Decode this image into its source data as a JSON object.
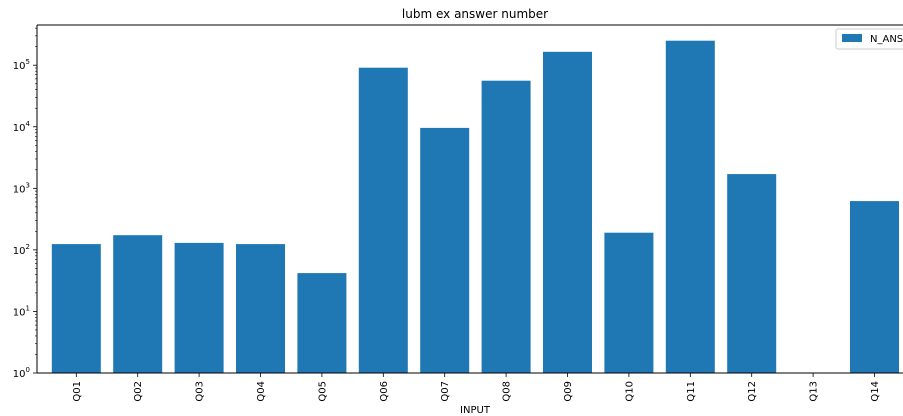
{
  "chart_data": {
    "type": "bar",
    "title": "lubm ex answer number",
    "xlabel": "INPUT",
    "ylabel": "",
    "yscale": "log",
    "ylim": [
      1,
      450000
    ],
    "grid": false,
    "legend_placement": "top-right",
    "bar_color": "#1f77b4",
    "categories": [
      "Q01",
      "Q02",
      "Q03",
      "Q04",
      "Q05",
      "Q06",
      "Q07",
      "Q08",
      "Q09",
      "Q10",
      "Q11",
      "Q12",
      "Q13",
      "Q14"
    ],
    "series": [
      {
        "name": "N_ANS",
        "values": [
          124,
          173,
          130,
          124,
          42,
          91000,
          9600,
          56000,
          165000,
          190,
          250000,
          1700,
          null,
          620
        ]
      }
    ],
    "yticks": [
      {
        "value": 1,
        "base": "10",
        "exp": "0"
      },
      {
        "value": 10,
        "base": "10",
        "exp": "1"
      },
      {
        "value": 100,
        "base": "10",
        "exp": "2"
      },
      {
        "value": 1000,
        "base": "10",
        "exp": "3"
      },
      {
        "value": 10000,
        "base": "10",
        "exp": "4"
      },
      {
        "value": 100000,
        "base": "10",
        "exp": "5"
      }
    ]
  }
}
